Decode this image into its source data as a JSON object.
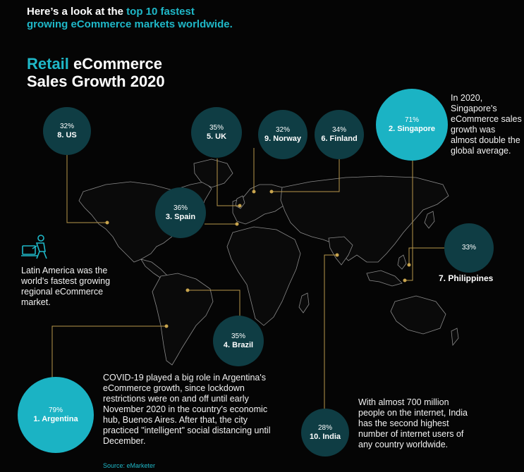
{
  "header": {
    "intro_prefix": "Here’s a look at the ",
    "intro_highlight": "top 10 fastest",
    "intro_suffix": "growing eCommerce markets worldwide.",
    "title_highlight": "Retail",
    "title_rest": " eCommerce",
    "title_line2": "Sales Growth 2020"
  },
  "markets": {
    "us": {
      "pct": "32%",
      "name": "8. US"
    },
    "uk": {
      "pct": "35%",
      "name": "5. UK"
    },
    "norway": {
      "pct": "32%",
      "name": "9. Norway"
    },
    "finland": {
      "pct": "34%",
      "name": "6. Finland"
    },
    "singapore": {
      "pct": "71%",
      "name": "2. Singapore"
    },
    "spain": {
      "pct": "36%",
      "name": "3. Spain"
    },
    "philippines": {
      "pct": "33%",
      "name": "7. Philippines"
    },
    "brazil": {
      "pct": "35%",
      "name": "4. Brazil"
    },
    "argentina": {
      "pct": "79%",
      "name": "1. Argentina"
    },
    "india": {
      "pct": "28%",
      "name": "10. India"
    }
  },
  "notes": {
    "singapore": "In 2020, Singapore's eCommerce sales growth was almost double the global average.",
    "latam": "Latin America was the world's fastest growing regional eCommerce market.",
    "argentina": "COVID-19 played a big role in Argentina's eCommerce growth, since lockdown restrictions were on and off until early November 2020 in the country's economic hub, Buenos Aires. After that, the city practiced \"intelligent\" social distancing until December.",
    "india": "With almost 700 million people on the internet, India has the second highest number of internet users of any country worldwide."
  },
  "source": "Source: eMarketer",
  "colors": {
    "accent": "#1fb8c8",
    "bubble_dark": "#0f3d44",
    "bubble_light": "#1bb3c4",
    "connector": "#b8974a",
    "map_outline": "#8a8a8a"
  },
  "icons": {
    "latam": "person-at-laptop-icon"
  }
}
